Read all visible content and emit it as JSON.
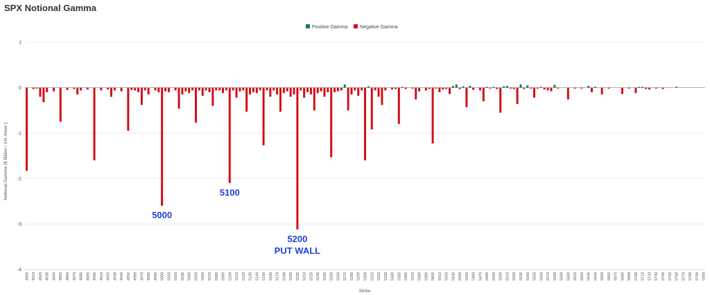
{
  "chart_data": {
    "type": "bar",
    "title": "SPX Notional Gamma",
    "xlabel": "Strike",
    "ylabel": "Notional Gamma ($ Billion / 1% move )",
    "ylim": [
      -4,
      1
    ],
    "yticks": [
      1,
      0,
      -1,
      -2,
      -3,
      -4
    ],
    "grid": "horizontal",
    "legend_position": "top-center",
    "colors": {
      "positive": "#1e7b4f",
      "negative": "#d0101a"
    },
    "series": [
      {
        "name": "Positive Gamma"
      },
      {
        "name": "Negative Gamma"
      }
    ],
    "x_start": 4800,
    "x_end": 5800,
    "x_step": 5,
    "tick_step": 10,
    "bars": [
      {
        "x": 4800,
        "v": -1.83
      },
      {
        "x": 4810,
        "v": -0.03
      },
      {
        "x": 4815,
        "v": -0.02
      },
      {
        "x": 4820,
        "v": -0.2
      },
      {
        "x": 4825,
        "v": -0.32
      },
      {
        "x": 4830,
        "v": -0.1
      },
      {
        "x": 4840,
        "v": -0.08
      },
      {
        "x": 4850,
        "v": -0.75
      },
      {
        "x": 4860,
        "v": -0.05
      },
      {
        "x": 4870,
        "v": -0.03
      },
      {
        "x": 4875,
        "v": -0.15
      },
      {
        "x": 4880,
        "v": -0.06
      },
      {
        "x": 4890,
        "v": -0.04
      },
      {
        "x": 4900,
        "v": -1.6
      },
      {
        "x": 4910,
        "v": -0.06
      },
      {
        "x": 4920,
        "v": -0.04
      },
      {
        "x": 4925,
        "v": -0.2
      },
      {
        "x": 4930,
        "v": -0.06
      },
      {
        "x": 4940,
        "v": -0.08
      },
      {
        "x": 4950,
        "v": -0.95
      },
      {
        "x": 4955,
        "v": -0.05
      },
      {
        "x": 4960,
        "v": -0.06
      },
      {
        "x": 4965,
        "v": -0.1
      },
      {
        "x": 4970,
        "v": -0.38
      },
      {
        "x": 4975,
        "v": -0.06
      },
      {
        "x": 4980,
        "v": -0.15
      },
      {
        "x": 4990,
        "v": -0.06
      },
      {
        "x": 4995,
        "v": -0.1
      },
      {
        "x": 5000,
        "v": -2.6
      },
      {
        "x": 5005,
        "v": -0.08
      },
      {
        "x": 5010,
        "v": -0.1
      },
      {
        "x": 5020,
        "v": -0.06
      },
      {
        "x": 5025,
        "v": -0.46
      },
      {
        "x": 5030,
        "v": -0.15
      },
      {
        "x": 5035,
        "v": -0.08
      },
      {
        "x": 5040,
        "v": -0.12
      },
      {
        "x": 5045,
        "v": -0.06
      },
      {
        "x": 5050,
        "v": -0.77
      },
      {
        "x": 5055,
        "v": -0.06
      },
      {
        "x": 5060,
        "v": -0.18
      },
      {
        "x": 5065,
        "v": -0.06
      },
      {
        "x": 5070,
        "v": -0.1
      },
      {
        "x": 5075,
        "v": -0.4
      },
      {
        "x": 5080,
        "v": -0.06
      },
      {
        "x": 5085,
        "v": -0.06
      },
      {
        "x": 5090,
        "v": -0.12
      },
      {
        "x": 5095,
        "v": -0.06
      },
      {
        "x": 5100,
        "v": -2.1
      },
      {
        "x": 5105,
        "v": -0.06
      },
      {
        "x": 5110,
        "v": -0.22
      },
      {
        "x": 5115,
        "v": -0.08
      },
      {
        "x": 5120,
        "v": -0.06
      },
      {
        "x": 5125,
        "v": -0.53
      },
      {
        "x": 5130,
        "v": -0.15
      },
      {
        "x": 5135,
        "v": -0.1
      },
      {
        "x": 5140,
        "v": -0.12
      },
      {
        "x": 5145,
        "v": -0.06
      },
      {
        "x": 5150,
        "v": -1.27
      },
      {
        "x": 5155,
        "v": -0.06
      },
      {
        "x": 5160,
        "v": -0.2
      },
      {
        "x": 5165,
        "v": -0.06
      },
      {
        "x": 5170,
        "v": -0.15
      },
      {
        "x": 5175,
        "v": -0.53
      },
      {
        "x": 5180,
        "v": -0.12
      },
      {
        "x": 5185,
        "v": -0.08
      },
      {
        "x": 5190,
        "v": -0.2
      },
      {
        "x": 5195,
        "v": -0.15
      },
      {
        "x": 5200,
        "v": -3.12
      },
      {
        "x": 5205,
        "v": -0.06
      },
      {
        "x": 5210,
        "v": -0.22
      },
      {
        "x": 5215,
        "v": -0.1
      },
      {
        "x": 5220,
        "v": -0.15
      },
      {
        "x": 5225,
        "v": -0.5
      },
      {
        "x": 5230,
        "v": -0.12
      },
      {
        "x": 5235,
        "v": -0.08
      },
      {
        "x": 5240,
        "v": -0.2
      },
      {
        "x": 5245,
        "v": -0.1
      },
      {
        "x": 5250,
        "v": -1.53
      },
      {
        "x": 5255,
        "v": -0.1
      },
      {
        "x": 5260,
        "v": -0.08
      },
      {
        "x": 5265,
        "v": -0.06
      },
      {
        "x": 5270,
        "v": 0.07
      },
      {
        "x": 5275,
        "v": -0.5
      },
      {
        "x": 5280,
        "v": -0.15
      },
      {
        "x": 5285,
        "v": -0.06
      },
      {
        "x": 5290,
        "v": -0.18
      },
      {
        "x": 5295,
        "v": -0.06
      },
      {
        "x": 5300,
        "v": -1.6
      },
      {
        "x": 5305,
        "v": 0.03
      },
      {
        "x": 5310,
        "v": -0.92
      },
      {
        "x": 5315,
        "v": -0.06
      },
      {
        "x": 5320,
        "v": -0.2
      },
      {
        "x": 5325,
        "v": -0.38
      },
      {
        "x": 5330,
        "v": -0.06
      },
      {
        "x": 5340,
        "v": -0.04
      },
      {
        "x": 5345,
        "v": -0.03
      },
      {
        "x": 5350,
        "v": -0.8
      },
      {
        "x": 5355,
        "v": 0.02
      },
      {
        "x": 5360,
        "v": -0.03
      },
      {
        "x": 5370,
        "v": -0.02
      },
      {
        "x": 5375,
        "v": -0.26
      },
      {
        "x": 5380,
        "v": -0.08
      },
      {
        "x": 5390,
        "v": -0.06
      },
      {
        "x": 5395,
        "v": -0.03
      },
      {
        "x": 5400,
        "v": -1.23
      },
      {
        "x": 5405,
        "v": -0.02
      },
      {
        "x": 5410,
        "v": -0.1
      },
      {
        "x": 5415,
        "v": -0.04
      },
      {
        "x": 5420,
        "v": -0.03
      },
      {
        "x": 5425,
        "v": -0.14
      },
      {
        "x": 5430,
        "v": 0.04
      },
      {
        "x": 5435,
        "v": 0.07
      },
      {
        "x": 5440,
        "v": -0.03
      },
      {
        "x": 5445,
        "v": 0.03
      },
      {
        "x": 5450,
        "v": -0.43
      },
      {
        "x": 5455,
        "v": 0.04
      },
      {
        "x": 5460,
        "v": -0.05
      },
      {
        "x": 5470,
        "v": -0.06
      },
      {
        "x": 5475,
        "v": -0.3
      },
      {
        "x": 5480,
        "v": 0.02
      },
      {
        "x": 5485,
        "v": -0.02
      },
      {
        "x": 5490,
        "v": 0.02
      },
      {
        "x": 5495,
        "v": -0.03
      },
      {
        "x": 5500,
        "v": -0.55
      },
      {
        "x": 5505,
        "v": 0.03
      },
      {
        "x": 5510,
        "v": 0.04
      },
      {
        "x": 5515,
        "v": -0.02
      },
      {
        "x": 5520,
        "v": -0.03
      },
      {
        "x": 5525,
        "v": -0.36
      },
      {
        "x": 5530,
        "v": 0.07
      },
      {
        "x": 5535,
        "v": -0.03
      },
      {
        "x": 5540,
        "v": 0.05
      },
      {
        "x": 5545,
        "v": -0.02
      },
      {
        "x": 5550,
        "v": -0.22
      },
      {
        "x": 5555,
        "v": -0.02
      },
      {
        "x": 5560,
        "v": 0.02
      },
      {
        "x": 5565,
        "v": -0.04
      },
      {
        "x": 5570,
        "v": -0.06
      },
      {
        "x": 5575,
        "v": -0.08
      },
      {
        "x": 5580,
        "v": 0.06
      },
      {
        "x": 5585,
        "v": -0.02
      },
      {
        "x": 5600,
        "v": -0.26
      },
      {
        "x": 5610,
        "v": -0.02
      },
      {
        "x": 5620,
        "v": -0.02
      },
      {
        "x": 5630,
        "v": 0.04
      },
      {
        "x": 5635,
        "v": -0.1
      },
      {
        "x": 5640,
        "v": 0.02
      },
      {
        "x": 5650,
        "v": -0.15
      },
      {
        "x": 5660,
        "v": -0.02
      },
      {
        "x": 5680,
        "v": -0.14
      },
      {
        "x": 5690,
        "v": -0.02
      },
      {
        "x": 5700,
        "v": -0.12
      },
      {
        "x": 5705,
        "v": 0.02
      },
      {
        "x": 5710,
        "v": 0.02
      },
      {
        "x": 5715,
        "v": -0.03
      },
      {
        "x": 5720,
        "v": -0.04
      },
      {
        "x": 5730,
        "v": -0.02
      },
      {
        "x": 5740,
        "v": -0.03
      },
      {
        "x": 5760,
        "v": 0.02
      }
    ],
    "annotations": [
      {
        "x": 5000,
        "lines": [
          "5000"
        ]
      },
      {
        "x": 5100,
        "lines": [
          "5100"
        ]
      },
      {
        "x": 5200,
        "lines": [
          "5200",
          "PUT WALL"
        ]
      }
    ]
  }
}
